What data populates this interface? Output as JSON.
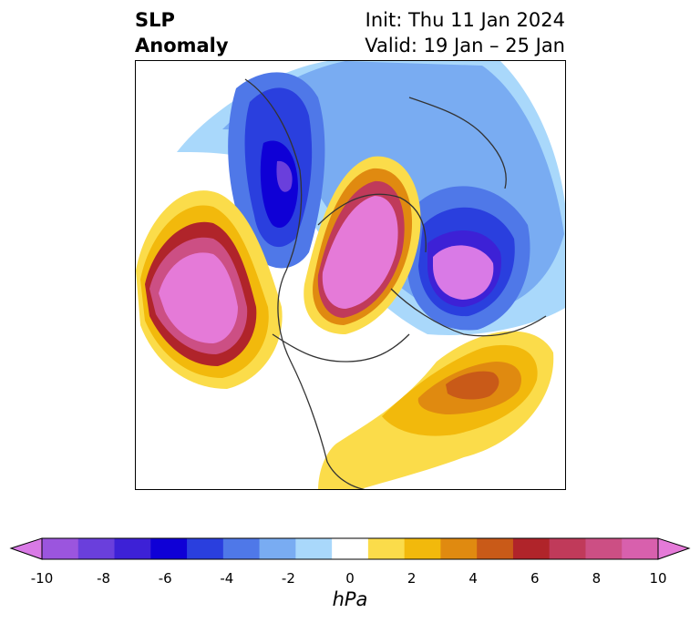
{
  "title": {
    "left_line1": "SLP",
    "left_line2": "Anomaly",
    "right_line1": "Init: Thu 11 Jan 2024",
    "right_line2": "Valid: 19 Jan – 25 Jan"
  },
  "colorbar": {
    "unit": "hPa",
    "ticks": [
      "-10",
      "-8",
      "-6",
      "-4",
      "-2",
      "0",
      "2",
      "4",
      "6",
      "8",
      "10"
    ],
    "colors": [
      "#9b55de",
      "#6a3fdc",
      "#3d21d6",
      "#0f00d6",
      "#2a3fde",
      "#4f78e8",
      "#79acf2",
      "#a9d8fb",
      "#ffffff",
      "#fbdc4a",
      "#f2b90c",
      "#e08a10",
      "#c95a18",
      "#b0242a",
      "#c03a5a",
      "#cc4f84",
      "#d860ad"
    ],
    "extend_low": "#d97ae6",
    "extend_high": "#e57ad8"
  }
}
